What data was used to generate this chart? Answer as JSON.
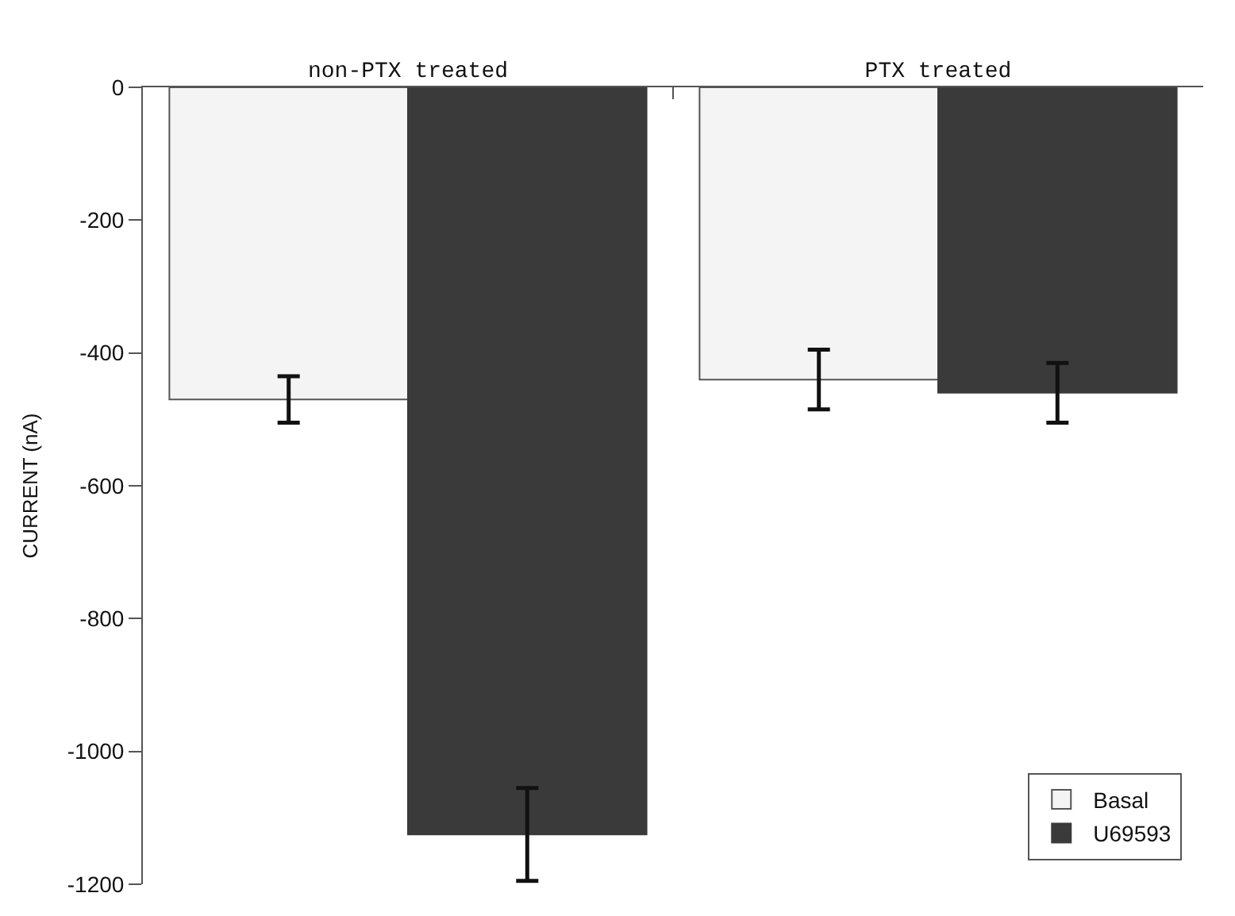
{
  "chart_data": {
    "type": "bar",
    "ylabel": "CURRENT (nA)",
    "categories": [
      "non-PTX treated",
      "PTX treated"
    ],
    "series": [
      {
        "name": "Basal",
        "color": "#f4f4f4",
        "values": [
          -470,
          -440
        ],
        "errors": [
          35,
          45
        ]
      },
      {
        "name": "U69593",
        "color": "#3a3a3a",
        "values": [
          -1125,
          -460
        ],
        "errors": [
          70,
          45
        ]
      }
    ],
    "ylim": [
      -1200,
      0
    ],
    "yticks": [
      0,
      -200,
      -400,
      -600,
      -800,
      -1000,
      -1200
    ],
    "legend": "bottom right"
  }
}
